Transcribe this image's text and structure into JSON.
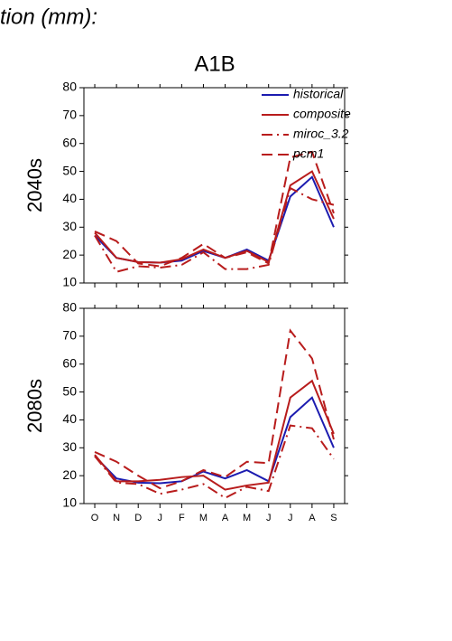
{
  "header": "tion (mm):",
  "chart_data": [
    {
      "type": "line",
      "title": "A1B",
      "y_label": "2040s",
      "ylim": [
        10,
        80
      ],
      "yticks": [
        10,
        20,
        30,
        40,
        50,
        60,
        70,
        80
      ],
      "legend": "upper right",
      "series": [
        {
          "name": "historical",
          "color": "#1c1cb0",
          "dash": "solid",
          "values": [
            27,
            19,
            17.5,
            17.3,
            18,
            21.5,
            19,
            22,
            18,
            41,
            48,
            30
          ]
        },
        {
          "name": "composite",
          "color": "#b81c1c",
          "dash": "solid",
          "values": [
            28,
            19,
            17.5,
            17.3,
            18.5,
            22,
            19,
            21.5,
            17.5,
            45,
            50,
            33
          ]
        },
        {
          "name": "miroc_3.2",
          "color": "#b81c1c",
          "dash": "dashdot",
          "values": [
            27,
            14,
            16,
            15.5,
            16.5,
            21,
            15,
            15,
            16.5,
            44,
            40,
            38
          ]
        },
        {
          "name": "pcm1",
          "color": "#b81c1c",
          "dash": "dashed",
          "values": [
            28.5,
            25,
            17,
            16,
            19,
            24,
            19,
            21,
            17,
            55,
            57,
            35
          ]
        }
      ]
    },
    {
      "type": "line",
      "y_label": "2080s",
      "ylim": [
        10,
        80
      ],
      "yticks": [
        10,
        20,
        30,
        40,
        50,
        60,
        70,
        80
      ],
      "categories": [
        "O",
        "N",
        "D",
        "J",
        "F",
        "M",
        "A",
        "M",
        "J",
        "J",
        "A",
        "S"
      ],
      "series": [
        {
          "color": "#1c1cb0",
          "dash": "solid",
          "values": [
            27,
            19,
            17.5,
            17.3,
            18,
            21.5,
            19,
            22,
            18,
            41,
            48,
            30
          ]
        },
        {
          "color": "#b81c1c",
          "dash": "solid",
          "values": [
            27.5,
            18,
            18,
            18.5,
            19.5,
            20,
            15,
            16.5,
            17.5,
            48,
            54,
            35
          ]
        },
        {
          "color": "#b81c1c",
          "dash": "dashdot",
          "values": [
            27,
            17.5,
            17,
            13.5,
            15,
            17,
            12,
            16,
            14.5,
            38,
            37,
            26
          ]
        },
        {
          "color": "#b81c1c",
          "dash": "dashed",
          "values": [
            28.5,
            25,
            20,
            15.5,
            18,
            22,
            19.5,
            25,
            24.5,
            72,
            62,
            33
          ]
        }
      ]
    }
  ]
}
